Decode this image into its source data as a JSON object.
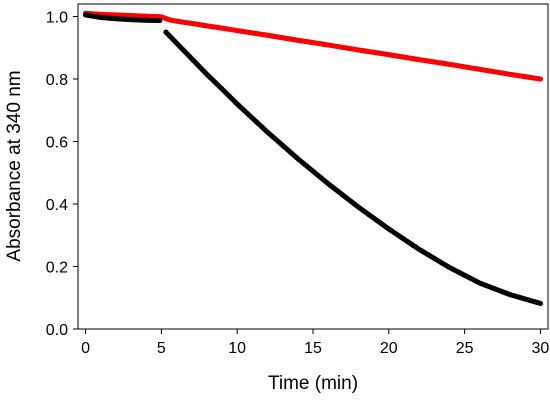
{
  "chart_data": {
    "type": "scatter",
    "title": "",
    "xlabel": "Time (min)",
    "ylabel": "Absorbance at 340 nm",
    "xlim": [
      -0.5,
      30.5
    ],
    "ylim": [
      0.0,
      1.04
    ],
    "xticks": [
      0,
      5,
      10,
      15,
      20,
      25,
      30
    ],
    "yticks": [
      0.0,
      0.2,
      0.4,
      0.6,
      0.8,
      1.0
    ],
    "xtick_labels": [
      "0",
      "5",
      "10",
      "15",
      "20",
      "25",
      "30"
    ],
    "ytick_labels": [
      "0.0",
      "0.2",
      "0.4",
      "0.6",
      "0.8",
      "1.0"
    ],
    "grid": false,
    "legend": "none",
    "series": [
      {
        "color": "#ff0000",
        "x": [
          0,
          1,
          2,
          3,
          4,
          5,
          5.5,
          6,
          7,
          8,
          9,
          10,
          12,
          14,
          16,
          18,
          20,
          22,
          24,
          26,
          28,
          30
        ],
        "y": [
          1.01,
          1.007,
          1.005,
          1.003,
          1.001,
          0.999,
          0.99,
          0.985,
          0.978,
          0.97,
          0.963,
          0.955,
          0.94,
          0.924,
          0.909,
          0.893,
          0.878,
          0.862,
          0.847,
          0.831,
          0.815,
          0.8
        ]
      },
      {
        "color": "#000000",
        "x": [
          0,
          1,
          2,
          3,
          4,
          5,
          5.3,
          6,
          7,
          8,
          9,
          10,
          12,
          14,
          16,
          18,
          20,
          22,
          24,
          26,
          28,
          30
        ],
        "y": [
          1.005,
          0.997,
          0.993,
          0.99,
          0.988,
          0.987,
          0.95,
          0.915,
          0.865,
          0.815,
          0.768,
          0.72,
          0.63,
          0.545,
          0.465,
          0.39,
          0.32,
          0.255,
          0.197,
          0.147,
          0.11,
          0.082
        ]
      }
    ]
  }
}
